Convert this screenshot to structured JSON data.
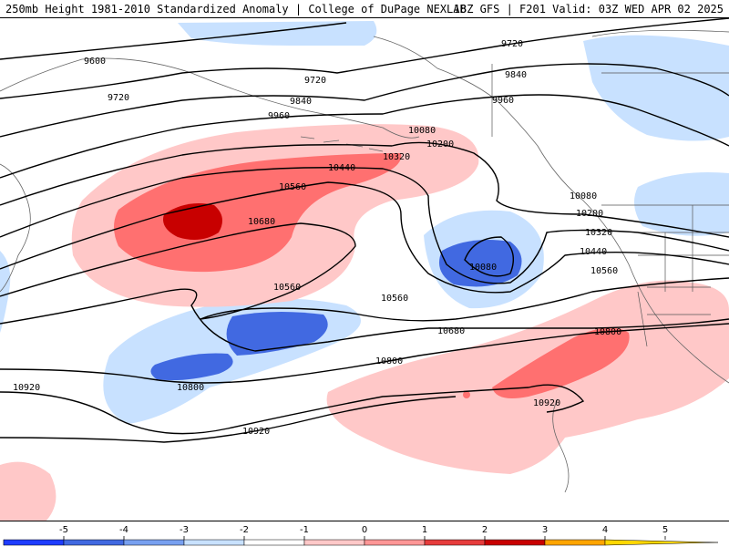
{
  "header": {
    "left": "250mb Height 1981-2010 Standardized Anomaly | College of DuPage NEXLAB",
    "right": "18Z GFS | F201 Valid: 03Z WED APR 02 2025"
  },
  "contour_labels": [
    "9600",
    "9720",
    "9720",
    "9720",
    "9840",
    "9840",
    "9960",
    "9960",
    "10080",
    "10080",
    "10080",
    "10200",
    "10200",
    "10320",
    "10320",
    "10440",
    "10440",
    "10560",
    "10560",
    "10560",
    "10560",
    "10680",
    "10680",
    "10800",
    "10800",
    "10800",
    "10920",
    "10920",
    "10920"
  ],
  "colorbar": {
    "labels": [
      "-5",
      "-4",
      "-3",
      "-2",
      "-1",
      "0",
      "1",
      "2",
      "3",
      "4",
      "5"
    ],
    "colors": [
      "#a000c8",
      "#1e3cff",
      "#4169e1",
      "#78a0f0",
      "#c8e1ff",
      "#ffffff",
      "#ffc8c8",
      "#ff9696",
      "#e63c3c",
      "#c80000",
      "#ffa500",
      "#ffd700"
    ]
  }
}
